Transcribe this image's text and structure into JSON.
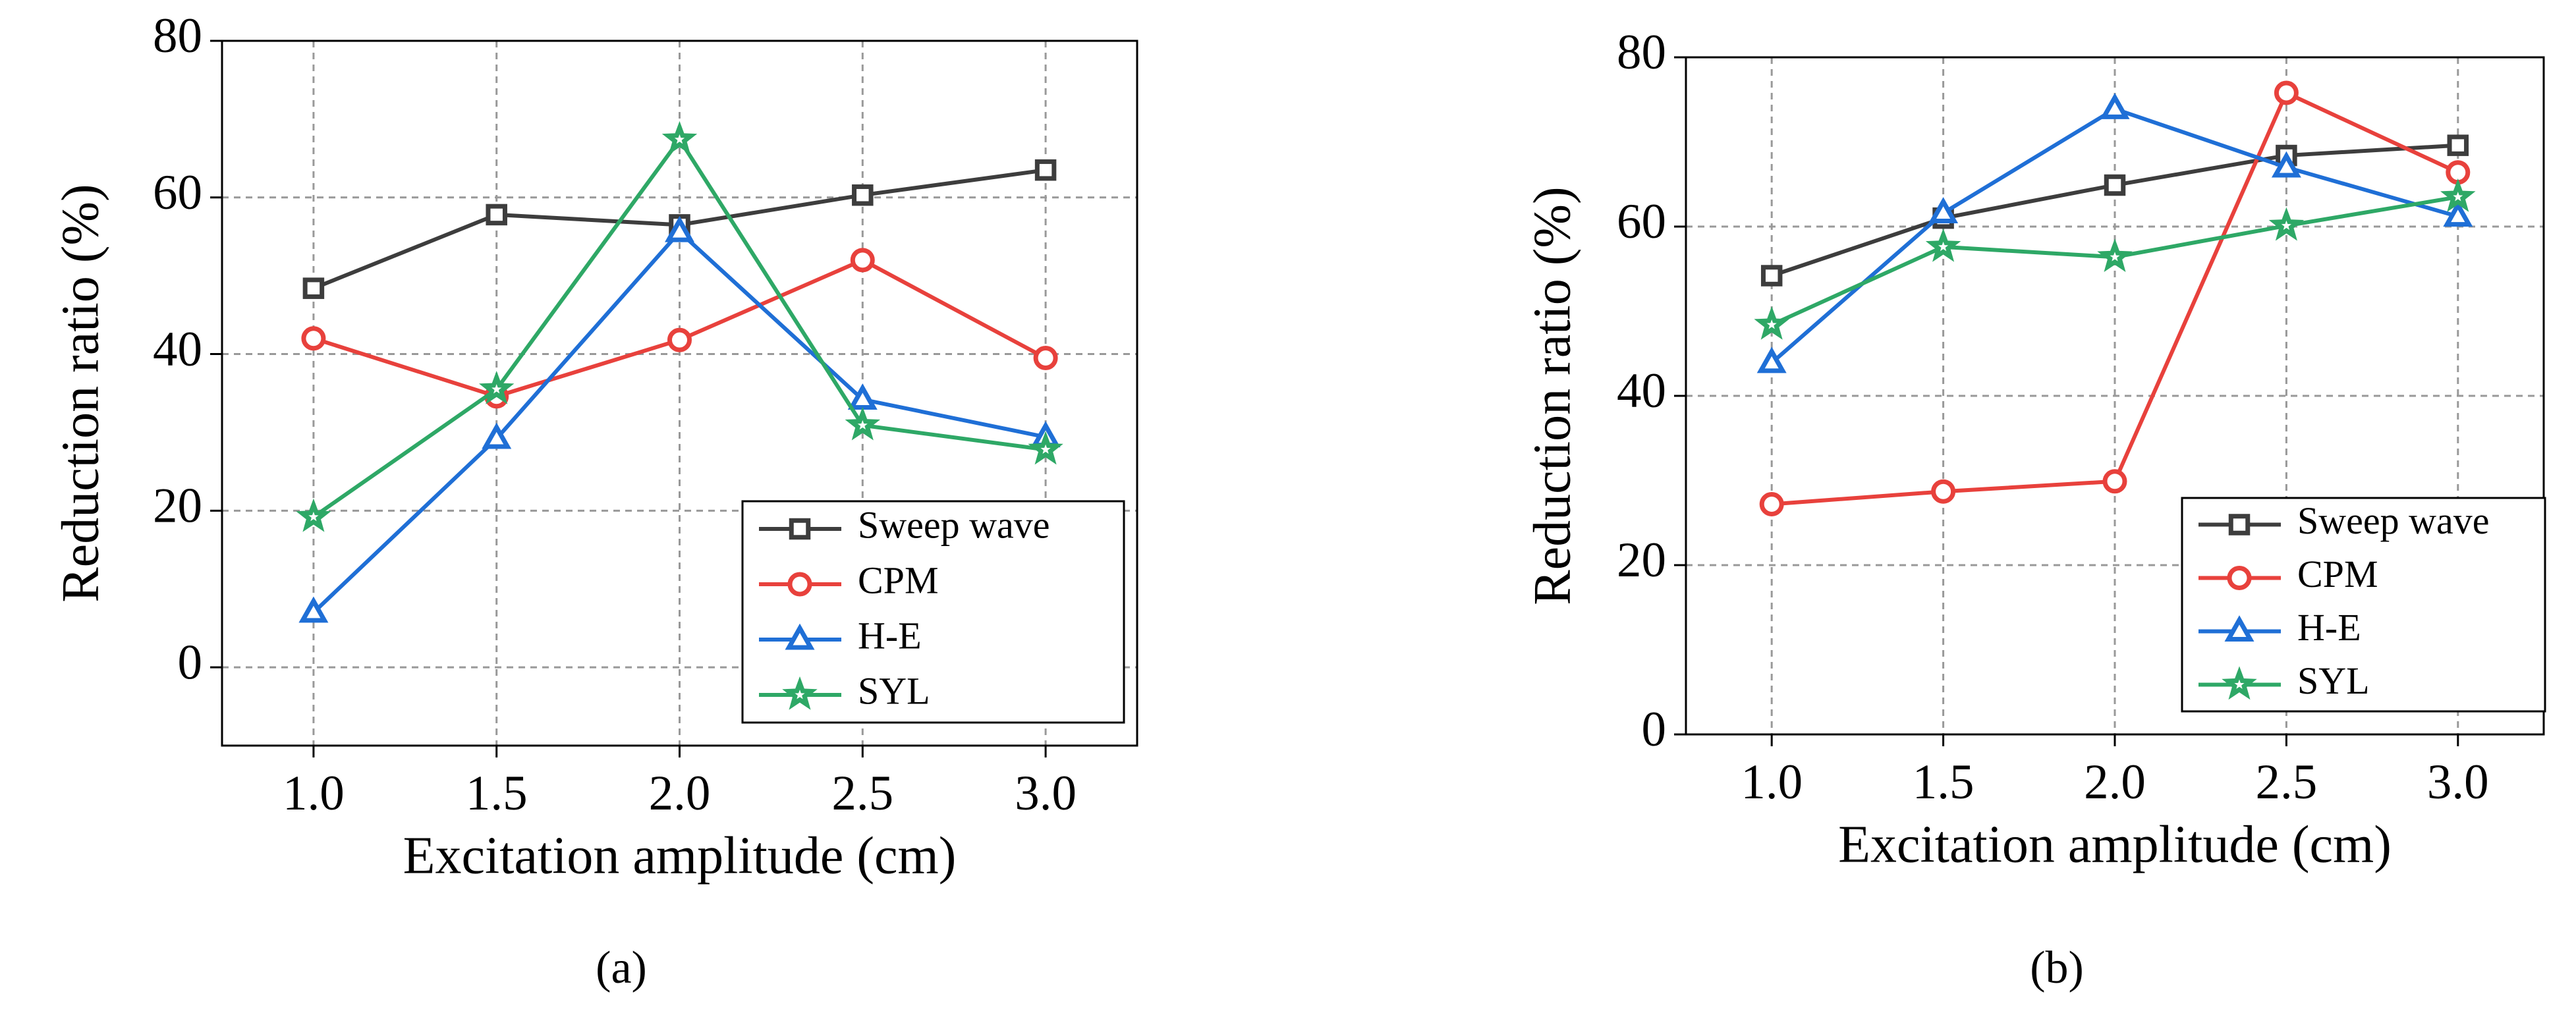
{
  "chart_data": [
    {
      "type": "line",
      "caption": "(a)",
      "x_label": "Excitation amplitude (cm)",
      "y_label": "Reduction ratio (%)",
      "x": [
        1,
        1.5,
        2,
        2.5,
        3
      ],
      "xlim": [
        0.75,
        3.25
      ],
      "xticks": [
        {
          "value": 1,
          "label": "1.0"
        },
        {
          "value": 1.5,
          "label": "1.5"
        },
        {
          "value": 2,
          "label": "2.0"
        },
        {
          "value": 2.5,
          "label": "2.5"
        },
        {
          "value": 3,
          "label": "3.0"
        }
      ],
      "ylim": [
        -10,
        80
      ],
      "yticks": [
        0,
        20,
        40,
        60,
        80
      ],
      "grid": true,
      "legend": "lower right",
      "series": [
        {
          "name": "Sweep wave",
          "color": "#3d3d3d",
          "marker": "square",
          "values": [
            48.4,
            57.8,
            56.5,
            60.3,
            63.5
          ]
        },
        {
          "name": "CPM",
          "color": "#e8413c",
          "marker": "circle",
          "values": [
            42,
            34.6,
            41.8,
            52,
            39.5
          ]
        },
        {
          "name": "H-E",
          "color": "#1f6fd6",
          "marker": "triangle",
          "values": [
            7,
            29.2,
            55.6,
            34.2,
            29.4
          ]
        },
        {
          "name": "SYL",
          "color": "#2ea866",
          "marker": "star",
          "values": [
            19.2,
            35.5,
            67.4,
            30.9,
            27.8
          ]
        }
      ]
    },
    {
      "type": "line",
      "caption": "(b)",
      "x_label": "Excitation amplitude (cm)",
      "y_label": "Reduction ratio (%)",
      "x": [
        1,
        1.5,
        2,
        2.5,
        3
      ],
      "xlim": [
        0.75,
        3.25
      ],
      "xticks": [
        {
          "value": 1,
          "label": "1.0"
        },
        {
          "value": 1.5,
          "label": "1.5"
        },
        {
          "value": 2,
          "label": "2.0"
        },
        {
          "value": 2.5,
          "label": "2.5"
        },
        {
          "value": 3,
          "label": "3.0"
        }
      ],
      "ylim": [
        0,
        80
      ],
      "yticks": [
        0,
        20,
        40,
        60,
        80
      ],
      "grid": true,
      "legend": "lower right",
      "series": [
        {
          "name": "Sweep wave",
          "color": "#3d3d3d",
          "marker": "square",
          "values": [
            54.2,
            61,
            64.9,
            68.4,
            69.6
          ]
        },
        {
          "name": "CPM",
          "color": "#e8413c",
          "marker": "circle",
          "values": [
            27.2,
            28.7,
            29.9,
            75.8,
            66.4
          ]
        },
        {
          "name": "H-E",
          "color": "#1f6fd6",
          "marker": "triangle",
          "values": [
            43.9,
            61.6,
            73.9,
            67,
            61.2
          ]
        },
        {
          "name": "SYL",
          "color": "#2ea866",
          "marker": "star",
          "values": [
            48.4,
            57.6,
            56.4,
            60.1,
            63.5
          ]
        }
      ]
    }
  ]
}
